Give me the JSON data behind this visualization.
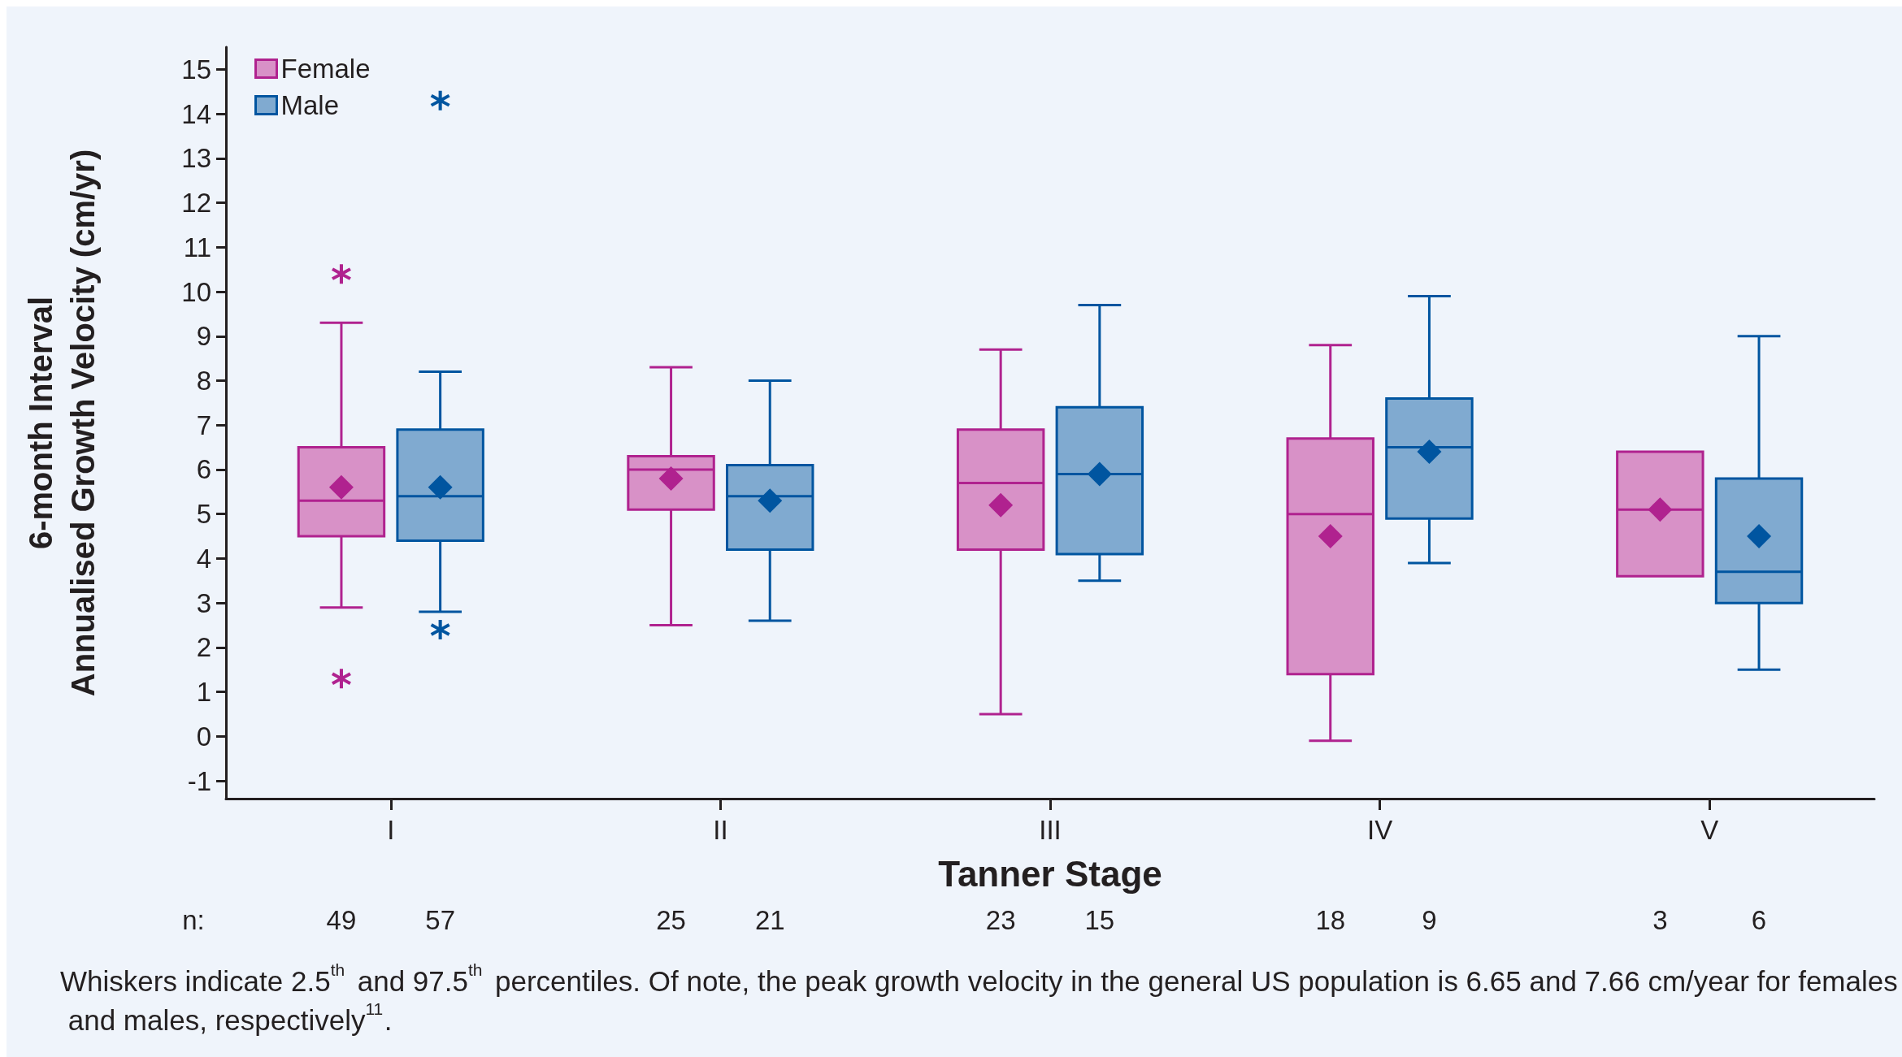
{
  "chart_data": {
    "type": "box",
    "categories": [
      "I",
      "II",
      "III",
      "IV",
      "V"
    ],
    "xlabel": "Tanner Stage",
    "ylabel": "6-month Interval\nAnnualised Growth Velocity (cm/yr)",
    "ylim": [
      -1.4,
      15.5
    ],
    "yticks": [
      -1,
      0,
      1,
      2,
      3,
      4,
      5,
      6,
      7,
      8,
      9,
      10,
      11,
      12,
      13,
      14,
      15
    ],
    "grid": false,
    "legend": "top left",
    "marker": "diamond",
    "series": [
      {
        "name": "Female",
        "color": "#b0228f",
        "boxes": [
          {
            "low": 2.9,
            "q1": 4.5,
            "median": 5.3,
            "q3": 6.5,
            "high": 9.3,
            "mean": 5.6,
            "outliers": [
              10.4,
              1.3
            ]
          },
          {
            "low": 2.5,
            "q1": 5.1,
            "median": 6.0,
            "q3": 6.3,
            "high": 8.3,
            "mean": 5.8
          },
          {
            "low": 0.5,
            "q1": 4.2,
            "median": 5.7,
            "q3": 6.9,
            "high": 8.7,
            "mean": 5.2
          },
          {
            "low": -0.1,
            "q1": 1.4,
            "median": 5.0,
            "q3": 6.7,
            "high": 8.8,
            "mean": 4.5
          },
          {
            "low": 3.6,
            "q1": 3.6,
            "median": 5.1,
            "q3": 6.4,
            "high": 6.4,
            "mean": 5.1
          }
        ]
      },
      {
        "name": "Male",
        "color": "#0055a0",
        "boxes": [
          {
            "low": 2.8,
            "q1": 4.4,
            "median": 5.4,
            "q3": 6.9,
            "high": 8.2,
            "mean": 5.6,
            "outliers": [
              14.3,
              2.4
            ]
          },
          {
            "low": 2.6,
            "q1": 4.2,
            "median": 5.4,
            "q3": 6.1,
            "high": 8.0,
            "mean": 5.3
          },
          {
            "low": 3.5,
            "q1": 4.1,
            "median": 5.9,
            "q3": 7.4,
            "high": 9.7,
            "mean": 5.9
          },
          {
            "low": 3.9,
            "q1": 4.9,
            "median": 6.5,
            "q3": 7.6,
            "high": 9.9,
            "mean": 6.4
          },
          {
            "low": 1.5,
            "q1": 3.0,
            "median": 3.7,
            "q3": 5.8,
            "high": 9.0,
            "mean": 4.5
          }
        ]
      }
    ],
    "annotations": [
      "n:",
      "49",
      "57",
      "25",
      "21",
      "23",
      "15",
      "18",
      "9",
      "3",
      "6",
      "Whiskers indicate 2.5$^{th}$ and 97.5$^{th}$ percentiles. Of note, the peak growth velocity in the general US population is 6.65 and 7.66 cm/year for females and males, respectively$^{11}$."
    ]
  }
}
